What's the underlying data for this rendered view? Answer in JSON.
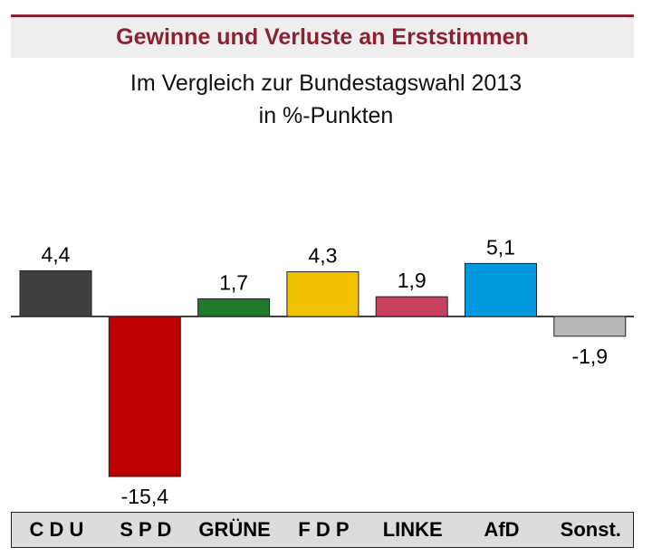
{
  "header": {
    "title": "Gewinne und Verluste an Erststimmen",
    "subtitle_line1": "Im Vergleich zur Bundestagswahl 2013",
    "subtitle_line2": "in %-Punkten"
  },
  "colors": {
    "title": "#8b2232",
    "baseline": "#000000"
  },
  "chart_data": {
    "type": "bar",
    "title": "Gewinne und Verluste an Erststimmen",
    "subtitle": "Im Vergleich zur Bundestagswahl 2013 in %-Punkten",
    "categories": [
      "C D U",
      "S P D",
      "GRÜNE",
      "F D P",
      "LINKE",
      "AfD",
      "Sonst."
    ],
    "values": [
      4.4,
      -15.4,
      1.7,
      4.3,
      1.9,
      5.1,
      -1.9
    ],
    "value_labels": [
      "4,4",
      "-15,4",
      "1,7",
      "4,3",
      "1,9",
      "5,1",
      "-1,9"
    ],
    "bar_colors": [
      "#3f3f3f",
      "#c00000",
      "#217a2b",
      "#f2c200",
      "#c8405e",
      "#0099dd",
      "#b8b8b8"
    ],
    "ylim": [
      -15.4,
      5.1
    ],
    "grid": false,
    "legend": "none"
  }
}
